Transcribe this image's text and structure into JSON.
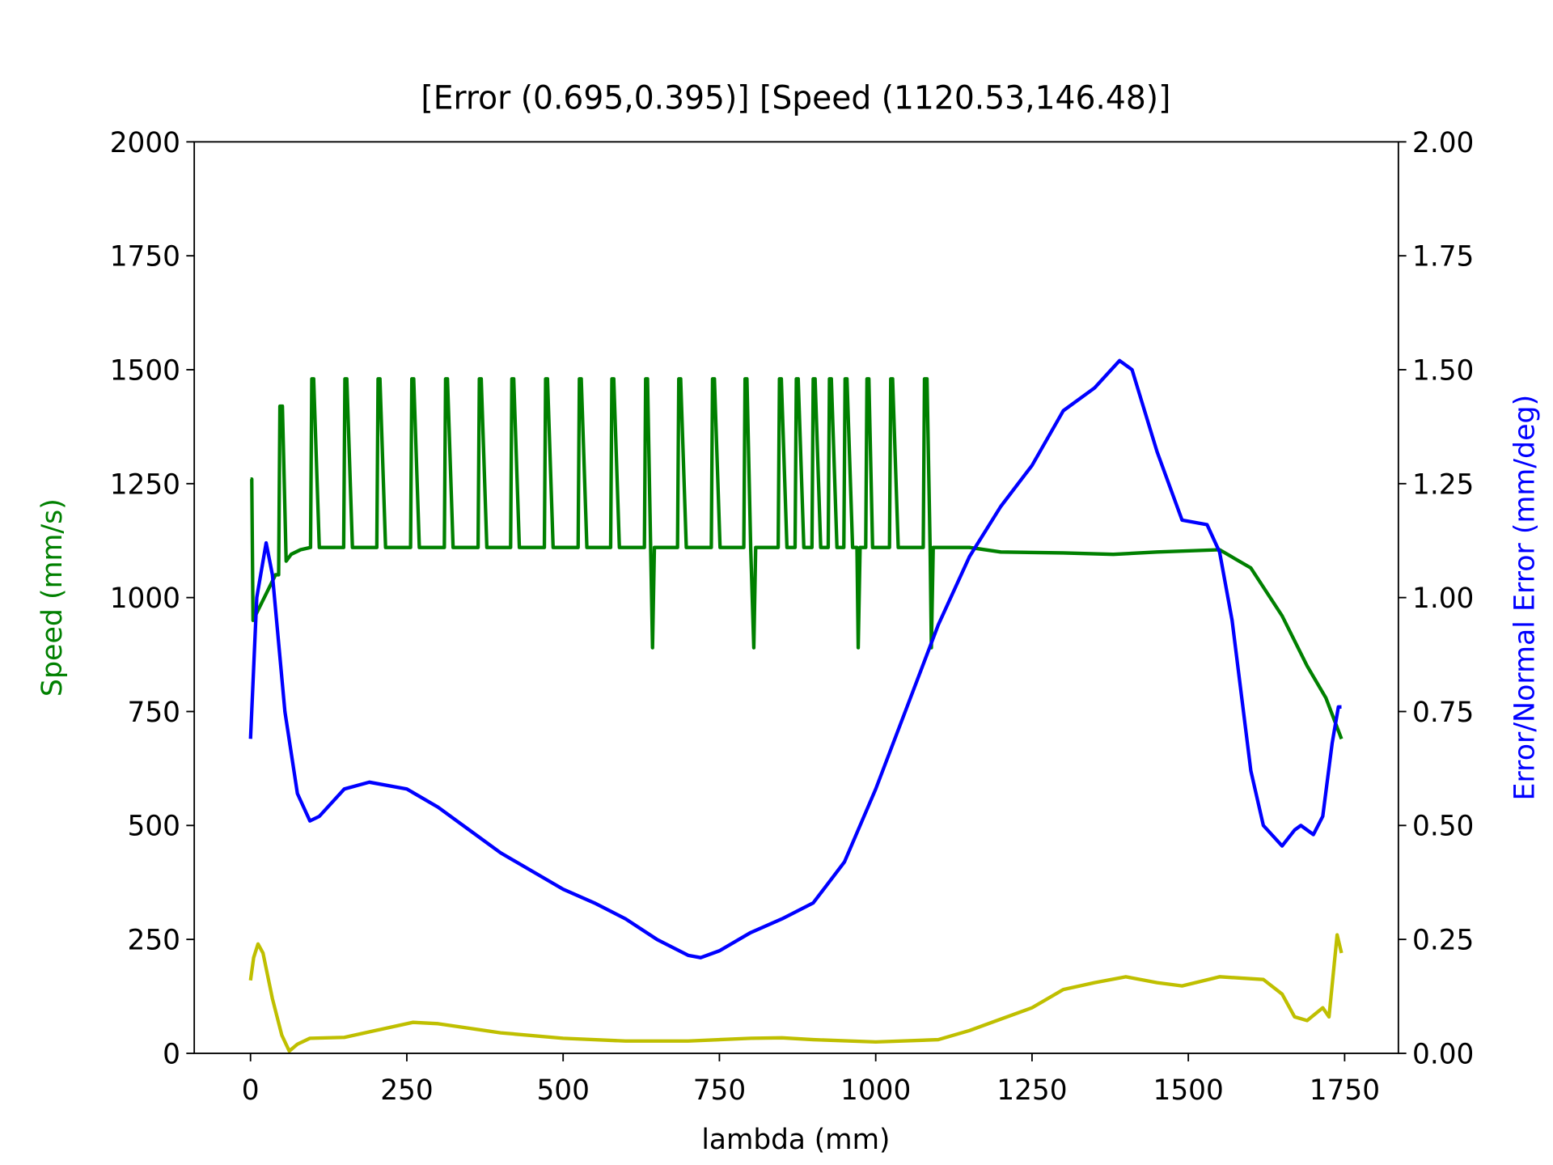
{
  "chart_data": {
    "type": "line",
    "title": "[Error (0.695,0.395)] [Speed (1120.53,146.48)]",
    "xlabel": "lambda (mm)",
    "ylabel": "Speed (mm/s)",
    "y2label": "Error/Normal Error (mm/deg)",
    "ylabel_color": "#008000",
    "y2label_color": "#0000ff",
    "xlim": [
      -90,
      1836
    ],
    "xticks": [
      0,
      250,
      500,
      750,
      1000,
      1250,
      1500,
      1750
    ],
    "ylim": [
      0,
      2000
    ],
    "yticks": [
      0,
      250,
      500,
      750,
      1000,
      1250,
      1500,
      1750,
      2000
    ],
    "y2lim": [
      0,
      2
    ],
    "y2ticks": [
      {
        "value": 0,
        "label": "0.00"
      },
      {
        "value": 0.25,
        "label": "0.25"
      },
      {
        "value": 0.5,
        "label": "0.50"
      },
      {
        "value": 0.75,
        "label": "0.75"
      },
      {
        "value": 1,
        "label": "1.00"
      },
      {
        "value": 1.25,
        "label": "1.25"
      },
      {
        "value": 1.5,
        "label": "1.50"
      },
      {
        "value": 1.75,
        "label": "1.75"
      },
      {
        "value": 2,
        "label": "2.00"
      }
    ],
    "series": [
      {
        "color": "#008000",
        "x": [
          0,
          2,
          4,
          40,
          45,
          47,
          51,
          57,
          65,
          80,
          96,
          98,
          101,
          110,
          149,
          151,
          154,
          163,
          202,
          204,
          207,
          216,
          256,
          258,
          261,
          270,
          310,
          312,
          315,
          324,
          364,
          366,
          369,
          378,
          416,
          418,
          421,
          430,
          470,
          472,
          475,
          484,
          524,
          526,
          529,
          538,
          576,
          578,
          581,
          590,
          630,
          632,
          635,
          640,
          643,
          646,
          683,
          685,
          688,
          697,
          737,
          739,
          742,
          751,
          789,
          791,
          794,
          800,
          805,
          808,
          844,
          846,
          849,
          858,
          871,
          873,
          876,
          885,
          898,
          900,
          903,
          912,
          924,
          926,
          929,
          938,
          949,
          951,
          954,
          963,
          970,
          972,
          975,
          984,
          986,
          989,
          995,
          1022,
          1024,
          1027,
          1036,
          1076,
          1078,
          1082,
          1087,
          1089,
          1092,
          1150,
          1200,
          1300,
          1380,
          1450,
          1550,
          1600,
          1650,
          1690,
          1720,
          1745
        ],
        "values": [
          1260,
          1260,
          950,
          1050,
          1050,
          1420,
          1420,
          1080,
          1095,
          1105,
          1110,
          1480,
          1480,
          1110,
          1110,
          1480,
          1480,
          1110,
          1110,
          1480,
          1480,
          1110,
          1110,
          1480,
          1480,
          1110,
          1110,
          1480,
          1480,
          1110,
          1110,
          1480,
          1480,
          1110,
          1110,
          1480,
          1480,
          1110,
          1110,
          1480,
          1480,
          1110,
          1110,
          1480,
          1480,
          1110,
          1110,
          1480,
          1480,
          1110,
          1110,
          1480,
          1480,
          1110,
          890,
          1110,
          1110,
          1480,
          1480,
          1110,
          1110,
          1480,
          1480,
          1110,
          1110,
          1480,
          1480,
          1110,
          890,
          1110,
          1110,
          1480,
          1480,
          1110,
          1110,
          1480,
          1480,
          1110,
          1110,
          1480,
          1480,
          1110,
          1110,
          1480,
          1480,
          1110,
          1110,
          1480,
          1480,
          1110,
          1110,
          890,
          1110,
          1110,
          1480,
          1480,
          1110,
          1110,
          1480,
          1480,
          1110,
          1110,
          1480,
          1480,
          1110,
          890,
          1110,
          1110,
          1100,
          1098,
          1095,
          1100,
          1105,
          1065,
          960,
          850,
          780,
          690
        ]
      },
      {
        "color": "#0000ff",
        "axis": "y2",
        "x": [
          0,
          10,
          25,
          35,
          55,
          75,
          95,
          110,
          150,
          190,
          250,
          300,
          350,
          400,
          450,
          500,
          550,
          600,
          650,
          700,
          720,
          750,
          800,
          850,
          900,
          950,
          1000,
          1050,
          1100,
          1150,
          1200,
          1250,
          1300,
          1350,
          1390,
          1410,
          1450,
          1490,
          1530,
          1550,
          1570,
          1600,
          1620,
          1650,
          1670,
          1680,
          1700,
          1715,
          1730,
          1740,
          1745
        ],
        "values": [
          0.69,
          1.0,
          1.12,
          1.05,
          0.75,
          0.57,
          0.51,
          0.52,
          0.58,
          0.595,
          0.58,
          0.54,
          0.49,
          0.44,
          0.4,
          0.36,
          0.33,
          0.295,
          0.25,
          0.215,
          0.21,
          0.225,
          0.265,
          0.295,
          0.33,
          0.42,
          0.58,
          0.76,
          0.94,
          1.09,
          1.2,
          1.29,
          1.41,
          1.46,
          1.52,
          1.5,
          1.32,
          1.17,
          1.16,
          1.1,
          0.95,
          0.62,
          0.5,
          0.455,
          0.49,
          0.5,
          0.48,
          0.52,
          0.68,
          0.76,
          0.76
        ]
      },
      {
        "color": "#bfbf00",
        "axis": "y2",
        "x": [
          0,
          5,
          12,
          20,
          35,
          50,
          62,
          75,
          95,
          150,
          200,
          260,
          300,
          400,
          500,
          600,
          700,
          800,
          850,
          900,
          1000,
          1100,
          1150,
          1200,
          1250,
          1300,
          1350,
          1400,
          1450,
          1490,
          1550,
          1620,
          1650,
          1670,
          1690,
          1715,
          1725,
          1738,
          1745
        ],
        "values": [
          0.16,
          0.21,
          0.24,
          0.22,
          0.12,
          0.04,
          0.005,
          0.02,
          0.033,
          0.035,
          0.05,
          0.068,
          0.065,
          0.045,
          0.033,
          0.027,
          0.027,
          0.033,
          0.034,
          0.03,
          0.025,
          0.03,
          0.05,
          0.075,
          0.1,
          0.14,
          0.155,
          0.168,
          0.155,
          0.148,
          0.168,
          0.162,
          0.13,
          0.08,
          0.072,
          0.1,
          0.08,
          0.26,
          0.22
        ]
      }
    ]
  }
}
